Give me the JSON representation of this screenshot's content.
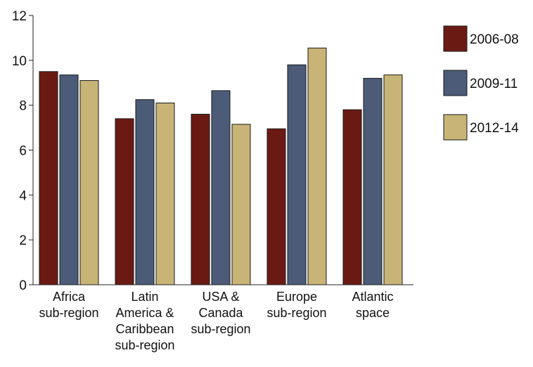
{
  "chart_data": {
    "type": "bar",
    "title": "",
    "xlabel": "",
    "ylabel": "",
    "ylim": [
      0,
      12
    ],
    "yticks": [
      0,
      2,
      4,
      6,
      8,
      10,
      12
    ],
    "grid": false,
    "legend_position": "right",
    "categories": [
      [
        "Africa",
        "sub-region"
      ],
      [
        "Latin",
        "America &",
        "Caribbean",
        "sub-region"
      ],
      [
        "USA &",
        "Canada",
        "sub-region"
      ],
      [
        "Europe",
        "sub-region"
      ],
      [
        "Atlantic",
        "space"
      ]
    ],
    "series": [
      {
        "name": "2006-08",
        "color": "#6b1a13",
        "values": [
          9.5,
          7.4,
          7.6,
          6.95,
          7.8
        ]
      },
      {
        "name": "2009-11",
        "color": "#4b5b78",
        "values": [
          9.35,
          8.25,
          8.65,
          9.8,
          9.2
        ]
      },
      {
        "name": "2012-14",
        "color": "#c8b477",
        "values": [
          9.1,
          8.1,
          7.15,
          10.55,
          9.35
        ]
      }
    ]
  }
}
